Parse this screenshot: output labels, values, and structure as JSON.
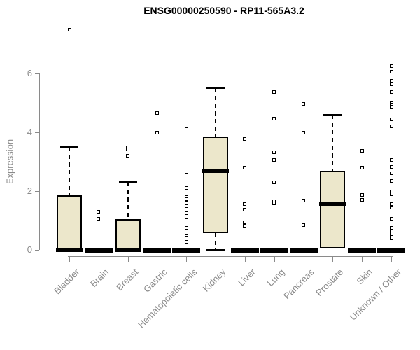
{
  "chart_data": {
    "type": "boxplot",
    "title": "ENSG00000250590 - RP11-565A3.2",
    "xlabel": "",
    "ylabel": "Expression",
    "ylim": [
      0,
      6
    ],
    "yticks": [
      0,
      2,
      4,
      6
    ],
    "grid": false,
    "colors": {
      "box_fill": "#ECE7CB",
      "box_border": "#000000",
      "median": "#000000",
      "axis": "#8a8a8a",
      "tick_text": "#8a8a8a",
      "title_text": "#000000",
      "outlier_fill": "#ffffff"
    },
    "categories": [
      "Bladder",
      "Brain",
      "Breast",
      "Gastric",
      "Hematopoietic cells",
      "Kidney",
      "Liver",
      "Lung",
      "Pancreas",
      "Prostate",
      "Skin",
      "Unknown / Other"
    ],
    "boxes": [
      {
        "category": "Bladder",
        "q1": 0,
        "median": 0,
        "q3": 1.85,
        "whisker_low": 0,
        "whisker_high": 3.5,
        "outliers": [
          7.5
        ]
      },
      {
        "category": "Brain",
        "q1": 0,
        "median": 0,
        "q3": 0,
        "whisker_low": 0,
        "whisker_high": 0,
        "outliers": [
          1.3,
          1.07
        ]
      },
      {
        "category": "Breast",
        "q1": 0,
        "median": 0,
        "q3": 1.05,
        "whisker_low": 0,
        "whisker_high": 2.3,
        "outliers": [
          3.5,
          3.42,
          3.2
        ]
      },
      {
        "category": "Gastric",
        "q1": 0,
        "median": 0,
        "q3": 0,
        "whisker_low": 0,
        "whisker_high": 0,
        "outliers": [
          4.65,
          4.0
        ]
      },
      {
        "category": "Hematopoietic cells",
        "q1": 0,
        "median": 0,
        "q3": 0,
        "whisker_low": 0,
        "whisker_high": 0,
        "outliers": [
          4.2,
          2.55,
          2.1,
          1.9,
          1.72,
          1.6,
          1.5,
          1.25,
          1.1,
          1.02,
          0.95,
          0.88,
          0.8,
          0.75,
          0.5,
          0.42,
          0.28
        ]
      },
      {
        "category": "Kidney",
        "q1": 0.57,
        "median": 2.7,
        "q3": 3.85,
        "whisker_low": 0,
        "whisker_high": 5.5,
        "outliers": []
      },
      {
        "category": "Liver",
        "q1": 0,
        "median": 0,
        "q3": 0,
        "whisker_low": 0,
        "whisker_high": 0,
        "outliers": [
          3.77,
          2.8,
          1.55,
          1.36,
          0.95,
          0.81
        ]
      },
      {
        "category": "Lung",
        "q1": 0,
        "median": 0,
        "q3": 0,
        "whisker_low": 0,
        "whisker_high": 0,
        "outliers": [
          5.38,
          4.47,
          3.33,
          3.07,
          2.3,
          1.65,
          1.58
        ]
      },
      {
        "category": "Pancreas",
        "q1": 0,
        "median": 0,
        "q3": 0,
        "whisker_low": 0,
        "whisker_high": 0,
        "outliers": [
          4.97,
          4.0,
          1.67,
          0.85
        ]
      },
      {
        "category": "Prostate",
        "q1": 0.05,
        "median": 1.57,
        "q3": 2.7,
        "whisker_low": 0.05,
        "whisker_high": 4.6,
        "outliers": []
      },
      {
        "category": "Skin",
        "q1": 0,
        "median": 0,
        "q3": 0,
        "whisker_low": 0,
        "whisker_high": 0,
        "outliers": [
          3.38,
          2.8,
          1.88,
          1.7
        ]
      },
      {
        "category": "Unknown / Other",
        "q1": 0,
        "median": 0,
        "q3": 0,
        "whisker_low": 0,
        "whisker_high": 0,
        "outliers": [
          6.24,
          6.05,
          5.74,
          5.62,
          5.38,
          5.02,
          4.93,
          4.86,
          4.43,
          4.21,
          3.05,
          2.83,
          2.6,
          2.35,
          2.0,
          1.9,
          1.55,
          1.43,
          1.07,
          0.76,
          0.64,
          0.55,
          0.45,
          0.4
        ]
      }
    ]
  }
}
